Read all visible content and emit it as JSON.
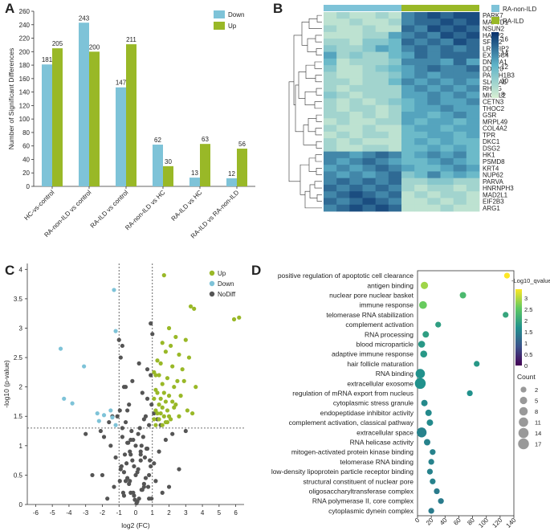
{
  "panels": {
    "a": "A",
    "b": "B",
    "c": "C",
    "d": "D"
  },
  "chart_data": [
    {
      "panel": "A",
      "type": "bar",
      "title": "",
      "ylabel": "Number of Significant Differences",
      "xlabel": "",
      "ylim": [
        0,
        260
      ],
      "yticks": [
        0,
        20,
        40,
        60,
        80,
        100,
        120,
        140,
        160,
        180,
        200,
        220,
        240,
        260
      ],
      "categories": [
        "HC-vs-control",
        "RA-non-ILD vs control",
        "RA-ILD vs control",
        "RA-non-ILD vs HC",
        "RA-ILD vs HC",
        "RA-ILD vs RA-non-ILD"
      ],
      "series": [
        {
          "name": "Down",
          "color": "#7ec3d8",
          "values": [
            181,
            243,
            147,
            62,
            13,
            12
          ]
        },
        {
          "name": "Up",
          "color": "#99b827",
          "values": [
            205,
            200,
            211,
            30,
            63,
            56
          ]
        }
      ],
      "legend": "top-right"
    },
    {
      "panel": "B",
      "type": "heatmap",
      "rows": [
        "PARK7",
        "MAP7D1",
        "NSUN2",
        "HABP2",
        "SF3B2",
        "LRRFIP2",
        "EXOSC4",
        "DNAJA1",
        "DDX20",
        "PAFAH1B3",
        "SLC1A5",
        "RHOG",
        "MICAL2",
        "CETN3",
        "THOC2",
        "GSR",
        "MRPL49",
        "COL4A2",
        "TPR",
        "DKC1",
        "DSG2",
        "HK1",
        "PSMD8",
        "KRT4",
        "NUP62",
        "PARVA",
        "HNRNPH3",
        "MAD2L1",
        "EIF2B3",
        "ARG1"
      ],
      "groups": [
        {
          "name": "RA-non-ILD",
          "color": "#7ec3d8",
          "columns": 6
        },
        {
          "name": "RA-ILD",
          "color": "#99b827",
          "columns": 6
        }
      ],
      "colorbar": {
        "ticks": [
          16,
          14,
          12,
          10,
          8
        ],
        "low_color": "#d8efd3",
        "high_color": "#08306b"
      },
      "values": [
        [
          9,
          10,
          9,
          9,
          10,
          9,
          14,
          15,
          16,
          15,
          16,
          16
        ],
        [
          9,
          9,
          10,
          9,
          9,
          10,
          14,
          15,
          15,
          16,
          15,
          16
        ],
        [
          10,
          9,
          9,
          10,
          9,
          9,
          15,
          14,
          16,
          15,
          16,
          15
        ],
        [
          9,
          9,
          9,
          10,
          10,
          13,
          14,
          15,
          14,
          16,
          15,
          16
        ],
        [
          10,
          10,
          9,
          11,
          11,
          12,
          15,
          14,
          15,
          14,
          16,
          15
        ],
        [
          11,
          10,
          10,
          11,
          13,
          12,
          14,
          15,
          14,
          15,
          14,
          15
        ],
        [
          13,
          10,
          11,
          10,
          10,
          12,
          13,
          15,
          14,
          15,
          15,
          15
        ],
        [
          12,
          9,
          10,
          10,
          10,
          11,
          14,
          14,
          14,
          13,
          15,
          13
        ],
        [
          11,
          9,
          9,
          10,
          11,
          12,
          13,
          14,
          15,
          14,
          14,
          15
        ],
        [
          10,
          9,
          9,
          10,
          10,
          11,
          13,
          14,
          13,
          14,
          14,
          14
        ],
        [
          10,
          10,
          9,
          10,
          10,
          12,
          14,
          13,
          14,
          13,
          14,
          13
        ],
        [
          10,
          9,
          10,
          10,
          10,
          10,
          13,
          14,
          13,
          14,
          13,
          14
        ],
        [
          11,
          10,
          9,
          10,
          10,
          10,
          13,
          13,
          14,
          13,
          14,
          13
        ],
        [
          10,
          9,
          10,
          9,
          10,
          11,
          12,
          13,
          14,
          13,
          13,
          14
        ],
        [
          10,
          9,
          10,
          10,
          9,
          10,
          12,
          13,
          13,
          14,
          13,
          13
        ],
        [
          10,
          10,
          9,
          10,
          9,
          10,
          13,
          13,
          12,
          13,
          14,
          13
        ],
        [
          9,
          10,
          9,
          9,
          10,
          10,
          13,
          12,
          13,
          13,
          12,
          13
        ],
        [
          10,
          9,
          9,
          10,
          9,
          9,
          12,
          13,
          13,
          12,
          13,
          13
        ],
        [
          9,
          10,
          9,
          10,
          10,
          9,
          12,
          12,
          13,
          13,
          12,
          13
        ],
        [
          10,
          9,
          10,
          9,
          9,
          9,
          12,
          13,
          12,
          13,
          12,
          12
        ],
        [
          10,
          9,
          9,
          10,
          10,
          9,
          12,
          12,
          13,
          12,
          13,
          12
        ],
        [
          14,
          14,
          13,
          14,
          15,
          14,
          12,
          13,
          14,
          13,
          14,
          12
        ],
        [
          14,
          13,
          14,
          15,
          14,
          13,
          12,
          12,
          13,
          14,
          13,
          12
        ],
        [
          13,
          14,
          13,
          14,
          15,
          14,
          13,
          12,
          12,
          13,
          14,
          13
        ],
        [
          14,
          13,
          14,
          13,
          14,
          15,
          11,
          12,
          14,
          12,
          13,
          12
        ],
        [
          14,
          15,
          14,
          15,
          14,
          15,
          10,
          10,
          11,
          11,
          10,
          10
        ],
        [
          15,
          14,
          15,
          14,
          15,
          14,
          10,
          9,
          10,
          10,
          9,
          10
        ],
        [
          14,
          15,
          16,
          15,
          14,
          15,
          9,
          10,
          9,
          10,
          10,
          9
        ],
        [
          15,
          14,
          15,
          16,
          15,
          14,
          9,
          9,
          10,
          9,
          10,
          9
        ],
        [
          14,
          15,
          16,
          15,
          16,
          15,
          9,
          9,
          9,
          10,
          9,
          9
        ]
      ]
    },
    {
      "panel": "C",
      "type": "scatter",
      "xlabel": "log2 (FC)",
      "ylabel": "-log10 (p-value)",
      "xlim": [
        -6.5,
        6.5
      ],
      "ylim": [
        0,
        4.1
      ],
      "xticks": [
        -6,
        -5,
        -4,
        -3,
        -2,
        -1,
        0,
        1,
        2,
        3,
        4,
        5,
        6
      ],
      "yticks": [
        0,
        0.5,
        1,
        1.5,
        2,
        2.5,
        3,
        3.5,
        4
      ],
      "thresholds": {
        "fc": [
          -1,
          1
        ],
        "p": 1.3
      },
      "series": [
        {
          "name": "Up",
          "color": "#99b827",
          "x": [
            1.7,
            3.3,
            3.5,
            5.9,
            6.2,
            2.0,
            2.4,
            1.6,
            2.1,
            3.0,
            1.8,
            2.6,
            3.2,
            1.3,
            1.5,
            2.2,
            2.8,
            1.1,
            1.2,
            1.4,
            1.9,
            2.5,
            2.9,
            3.6,
            1.6,
            2.3,
            1.2,
            1.3,
            1.7,
            2.0,
            2.7,
            1.1,
            1.5,
            1.8,
            2.2,
            2.4,
            1.4,
            1.6,
            1.9,
            3.1,
            1.2,
            1.3,
            1.5,
            1.7,
            2.0,
            2.1,
            1.1,
            1.4,
            1.8,
            2.6,
            1.2,
            1.6,
            1.9,
            3.4,
            2.3
          ],
          "y": [
            3.9,
            3.37,
            3.33,
            3.15,
            3.18,
            3.0,
            2.85,
            2.75,
            2.7,
            2.8,
            2.6,
            2.55,
            2.5,
            2.45,
            2.4,
            2.35,
            2.3,
            2.25,
            2.2,
            2.2,
            2.15,
            2.1,
            2.1,
            2.0,
            2.05,
            2.0,
            1.95,
            1.9,
            1.9,
            1.85,
            1.85,
            1.8,
            1.8,
            1.75,
            1.75,
            1.7,
            1.7,
            1.65,
            1.6,
            1.6,
            1.6,
            1.55,
            1.55,
            1.5,
            1.5,
            1.45,
            1.45,
            1.45,
            1.4,
            1.5,
            1.35,
            1.35,
            1.4,
            1.55,
            1.65
          ]
        },
        {
          "name": "Down",
          "color": "#7ec3d8",
          "x": [
            -1.3,
            -4.5,
            -1.2,
            -4.3,
            -3.8,
            -2.3,
            -1.9,
            -1.5,
            -3.1,
            -2.2,
            -1.4,
            -1.2
          ],
          "y": [
            3.65,
            2.65,
            2.95,
            1.8,
            1.72,
            1.55,
            1.52,
            1.6,
            2.35,
            1.42,
            1.48,
            1.35
          ]
        },
        {
          "name": "NoDiff",
          "color": "#555555",
          "x": [
            0.2,
            -0.3,
            0.5,
            -0.6,
            0.8,
            -0.9,
            0.1,
            -0.1,
            0.4,
            -0.4,
            0.6,
            -0.7,
            0.9,
            -0.2,
            0.3,
            0.7,
            -0.5,
            -0.8,
            0.05,
            -0.05,
            1.1,
            -1.2,
            1.4,
            -1.5,
            1.8,
            -1.9,
            2.2,
            -2.1,
            2.6,
            -2.6,
            0.15,
            -0.15,
            0.35,
            -0.35,
            0.55,
            -0.55,
            0.75,
            -0.75,
            0.95,
            -0.95,
            0.25,
            -0.25,
            0.45,
            -0.45,
            0.65,
            -0.65,
            0.85,
            -0.85,
            1.2,
            -1.3,
            1.6,
            -1.7,
            2.0,
            -2.0,
            0.1,
            -0.1,
            0.3,
            -0.3,
            0.5,
            -0.5,
            0.7,
            -0.7,
            0.9,
            -0.9,
            0.2,
            -0.2,
            0.4,
            -0.4,
            0.6,
            -0.6,
            0.8,
            -0.8,
            1.0,
            -1.0,
            1.3,
            -1.4,
            1.5,
            -1.6,
            0.0,
            0.0,
            0.9,
            -0.8,
            0.7,
            -0.6,
            0.95,
            -0.95,
            1.1,
            -1.1,
            3.0,
            -3.0,
            0.3,
            -0.3,
            0.5,
            -0.5,
            0.15,
            -0.15,
            0.35,
            -0.35,
            0.8,
            -0.7
          ],
          "y": [
            0.1,
            0.2,
            0.3,
            0.4,
            0.5,
            0.6,
            0.05,
            0.15,
            0.25,
            0.35,
            0.45,
            0.55,
            0.65,
            0.75,
            0.85,
            0.95,
            1.05,
            1.15,
            0.02,
            0.08,
            0.7,
            0.8,
            0.9,
            1.0,
            1.1,
            1.15,
            1.2,
            1.25,
            0.6,
            0.5,
            1.2,
            1.1,
            1.0,
            0.9,
            0.8,
            0.7,
            0.3,
            0.2,
            0.1,
            0.4,
            1.3,
            1.25,
            1.15,
            1.05,
            0.95,
            0.85,
            0.75,
            0.65,
            0.4,
            0.3,
            0.2,
            0.1,
            0.3,
            0.5,
            0.55,
            0.65,
            0.75,
            0.85,
            1.45,
            1.6,
            1.8,
            2.0,
            2.2,
            2.5,
            2.4,
            2.1,
            1.9,
            1.7,
            1.5,
            1.4,
            1.35,
            1.3,
            2.9,
            2.8,
            1.45,
            1.5,
            1.35,
            1.4,
            1.0,
            0.5,
            3.08,
            2.7,
            2.3,
            2.0,
            1.7,
            1.6,
            1.55,
            1.5,
            1.25,
            1.2,
            0.9,
            1.1,
            0.35,
            0.45,
            0.6,
            0.2,
            0.25,
            0.4,
            0.1,
            0.15
          ]
        }
      ],
      "legend": "top-right"
    },
    {
      "panel": "D",
      "type": "scatter",
      "subtype": "bubble",
      "xlabel": "",
      "xlim": [
        0,
        140
      ],
      "xticks": [
        0,
        20,
        40,
        60,
        80,
        100,
        120,
        140
      ],
      "terms": [
        "positive regulation of apoptotic cell clearance",
        "antigen binding",
        "nuclear pore nuclear basket",
        "immune response",
        "telomerase RNA stabilization",
        "complement activation",
        "RNA processing",
        "blood microparticle",
        "adaptive immune response",
        "hair follicle maturation",
        "RNA binding",
        "extracellular exosome",
        "regulation of mRNA export from nucleus",
        "cytoplasmic stress granule",
        "endopeptidase inhibitor activity",
        "complement activation, classical pathway",
        "extracellular space",
        "RNA helicase activity",
        "mitogen-activated protein kinase binding",
        "telomerase RNA binding",
        "low-density lipoprotein particle receptor binding",
        "structural constituent of nuclear pore",
        "oligosaccharyltransferase complex",
        "RNA polymerase II, core complex",
        "cytoplasmic dynein complex"
      ],
      "x": [
        130,
        10,
        66,
        8,
        128,
        30,
        12,
        6,
        9,
        86,
        4,
        4,
        76,
        10,
        16,
        18,
        6,
        14,
        22,
        20,
        18,
        22,
        28,
        34,
        20
      ],
      "count": [
        2,
        5,
        3,
        6,
        2,
        2,
        3,
        4,
        4,
        2,
        11,
        17,
        2,
        3,
        3,
        3,
        13,
        3,
        2,
        2,
        2,
        2,
        2,
        2,
        2
      ],
      "qvalue": [
        3.4,
        2.9,
        2.3,
        2.6,
        2.0,
        1.9,
        1.9,
        1.8,
        1.8,
        1.8,
        1.7,
        1.7,
        1.7,
        1.6,
        1.6,
        1.6,
        1.5,
        1.5,
        1.5,
        1.5,
        1.5,
        1.5,
        1.4,
        1.4,
        1.4
      ],
      "colorbar": {
        "title": "-Log10_qvalue",
        "ticks": [
          3,
          2.5,
          2,
          1.5,
          1,
          0.5,
          0
        ],
        "range": [
          0,
          3.4
        ]
      },
      "size_legend": {
        "title": "Count",
        "values": [
          2,
          5,
          8,
          11,
          14,
          17
        ]
      }
    }
  ]
}
